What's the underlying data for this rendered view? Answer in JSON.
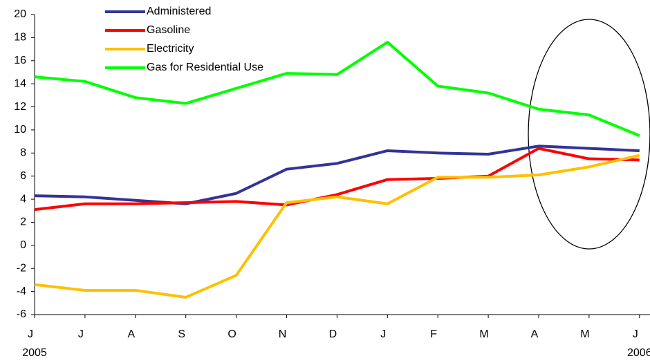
{
  "chart_data": {
    "type": "line",
    "categories": [
      "J",
      "J",
      "A",
      "S",
      "O",
      "N",
      "D",
      "J",
      "F",
      "M",
      "A",
      "M",
      "J"
    ],
    "period_labels": [
      "2005",
      null,
      null,
      null,
      null,
      null,
      null,
      null,
      null,
      null,
      null,
      null,
      "2006"
    ],
    "series": [
      {
        "name": "Administered",
        "color": "#333399",
        "values": [
          4.3,
          4.2,
          3.9,
          3.6,
          4.5,
          6.6,
          7.1,
          8.2,
          8.0,
          7.9,
          8.6,
          8.4,
          8.2
        ]
      },
      {
        "name": "Gasoline",
        "color": "#ff0000",
        "values": [
          3.1,
          3.6,
          3.6,
          3.7,
          3.8,
          3.5,
          4.4,
          5.7,
          5.8,
          6.0,
          8.4,
          7.5,
          7.4
        ]
      },
      {
        "name": "Electricity",
        "color": "#ffc000",
        "values": [
          -3.4,
          -3.9,
          -3.9,
          -4.5,
          -2.6,
          3.7,
          4.2,
          3.6,
          5.9,
          5.9,
          6.1,
          6.8,
          7.8
        ]
      },
      {
        "name": "Gas for Residential Use",
        "color": "#00ff00",
        "values": [
          14.6,
          14.2,
          12.8,
          12.3,
          13.6,
          14.9,
          14.8,
          17.6,
          13.8,
          13.2,
          11.8,
          11.3,
          9.5
        ]
      }
    ],
    "ylim": [
      -6,
      20
    ],
    "yticks": [
      -6,
      -4,
      -2,
      0,
      2,
      4,
      6,
      8,
      10,
      12,
      14,
      16,
      18,
      20
    ],
    "grid": false
  }
}
